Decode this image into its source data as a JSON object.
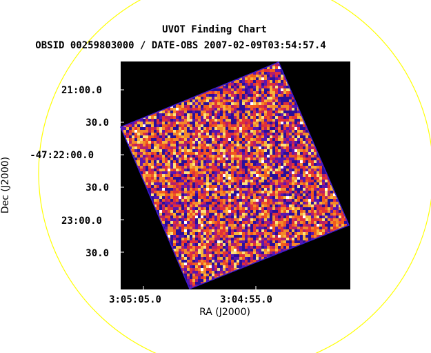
{
  "title": "UVOT Finding Chart",
  "subtitle": "OBSID 00259803000 / DATE-OBS 2007-02-09T03:54:57.4",
  "x_axis": {
    "label": "RA (J2000)",
    "ticks": [
      "3:05:05.0",
      "3:04:55.0"
    ]
  },
  "y_axis": {
    "label": "Dec (J2000)",
    "ticks": [
      "21:00.0",
      "30.0",
      "-47:22:00.0",
      "30.0",
      "23:00.0",
      "30.0"
    ]
  },
  "colors": {
    "background": "#000000",
    "circle": "#ffff00",
    "palette": [
      "#2a0f9a",
      "#5a16b0",
      "#b21e6e",
      "#e0303a",
      "#f15a1e",
      "#f4882a",
      "#f7b43a",
      "#fbe17a",
      "#ffffff"
    ]
  }
}
